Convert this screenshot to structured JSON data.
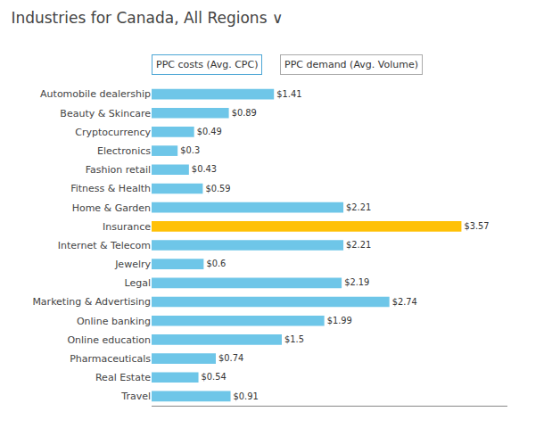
{
  "chart_data": {
    "type": "bar",
    "orientation": "horizontal",
    "title": "Industries for Canada, All Regions ∨",
    "annotations": [
      "PPC costs (Avg. CPC)",
      "PPC demand (Avg. Volume)"
    ],
    "categories": [
      "Automobile dealership",
      "Beauty & Skincare",
      "Cryptocurrency",
      "Electronics",
      "Fashion retail",
      "Fitness & Health",
      "Home & Garden",
      "Insurance",
      "Internet & Telecom",
      "Jewelry",
      "Legal",
      "Marketing & Advertising",
      "Online banking",
      "Online education",
      "Pharmaceuticals",
      "Real Estate",
      "Travel"
    ],
    "values": [
      1.41,
      0.89,
      0.49,
      0.3,
      0.43,
      0.59,
      2.21,
      3.57,
      2.21,
      0.6,
      2.19,
      2.74,
      1.99,
      1.5,
      0.74,
      0.54,
      0.91
    ],
    "value_labels": [
      "$1.41",
      "$0.89",
      "$0.49",
      "$0.3",
      "$0.43",
      "$0.59",
      "$2.21",
      "$3.57",
      "$2.21",
      "$0.6",
      "$2.19",
      "$2.74",
      "$1.99",
      "$1.5",
      "$0.74",
      "$0.54",
      "$0.91"
    ],
    "colors": [
      "#6EC6E8",
      "#6EC6E8",
      "#6EC6E8",
      "#6EC6E8",
      "#6EC6E8",
      "#6EC6E8",
      "#6EC6E8",
      "#FFC107",
      "#6EC6E8",
      "#6EC6E8",
      "#6EC6E8",
      "#6EC6E8",
      "#6EC6E8",
      "#6EC6E8",
      "#6EC6E8",
      "#6EC6E8",
      "#6EC6E8"
    ],
    "xlim": [
      0,
      4.1
    ],
    "data_labels": true,
    "tick_labels": "y",
    "grid": false
  }
}
